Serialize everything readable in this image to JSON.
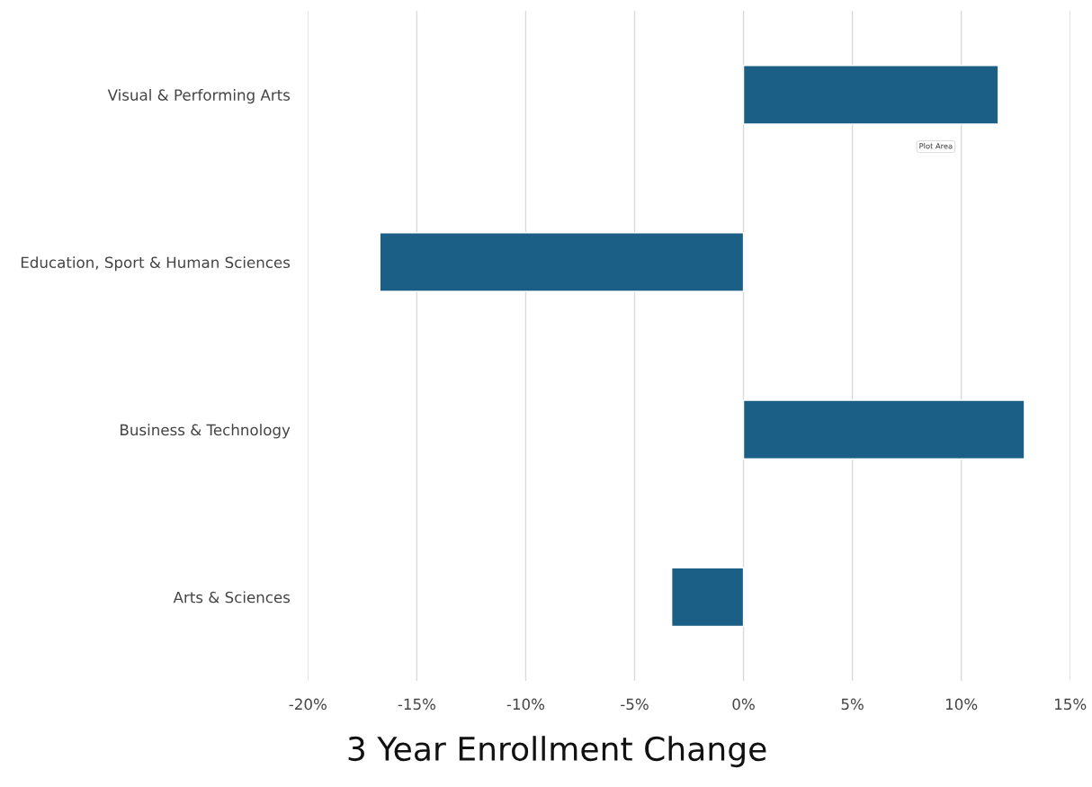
{
  "chart_data": {
    "type": "bar",
    "orientation": "horizontal",
    "title": "3 Year Enrollment Change",
    "categories": [
      "Visual & Performing Arts",
      "Education, Sport & Human Sciences",
      "Business & Technology",
      "Arts & Sciences"
    ],
    "values": [
      11.7,
      -16.7,
      12.9,
      -3.3
    ],
    "color": "#1b5e86",
    "xlim": [
      -20,
      15
    ],
    "xticks": [
      {
        "value": -20,
        "label": "-20%"
      },
      {
        "value": -15,
        "label": "-15%"
      },
      {
        "value": -10,
        "label": "-10%"
      },
      {
        "value": -5,
        "label": "-5%"
      },
      {
        "value": 0,
        "label": "0%"
      },
      {
        "value": 5,
        "label": "5%"
      },
      {
        "value": 10,
        "label": "10%"
      },
      {
        "value": 15,
        "label": "15%"
      }
    ],
    "grid": "x",
    "annotations": [
      "Plot Area"
    ]
  }
}
